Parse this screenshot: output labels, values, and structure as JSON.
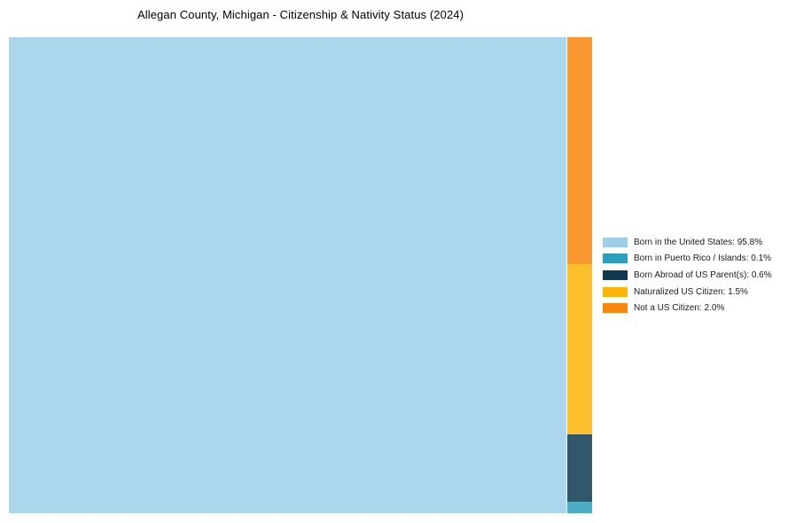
{
  "title": "Allegan County, Michigan - Citizenship & Nativity Status (2024)",
  "chart_data": {
    "type": "treemap",
    "title": "Allegan County, Michigan - Citizenship & Nativity Status (2024)",
    "unit": "%",
    "legend_position": "right",
    "layout_note": "single large tile at left for majority category; remaining categories stacked vertically in a thin right column, ordered bottom-to-top teal, navy, yellow, orange",
    "categories": [
      {
        "label": "Born in the United States",
        "value_pct": 95.8,
        "color": "#9ECFE8",
        "legend_label": "Born in the United States: 95.8%"
      },
      {
        "label": "Born in Puerto Rico / Islands",
        "value_pct": 0.1,
        "color": "#2E9FBA",
        "legend_label": "Born in Puerto Rico / Islands: 0.1%"
      },
      {
        "label": "Born Abroad of US Parent(s)",
        "value_pct": 0.6,
        "color": "#0E3950",
        "legend_label": "Born Abroad of US Parent(s): 0.6%"
      },
      {
        "label": "Naturalized US Citizen",
        "value_pct": 1.5,
        "color": "#FEB407",
        "legend_label": "Naturalized US Citizen: 1.5%"
      },
      {
        "label": "Not a US Citizen",
        "value_pct": 2.0,
        "color": "#F8860D",
        "legend_label": "Not a US Citizen: 2.0%"
      }
    ]
  }
}
